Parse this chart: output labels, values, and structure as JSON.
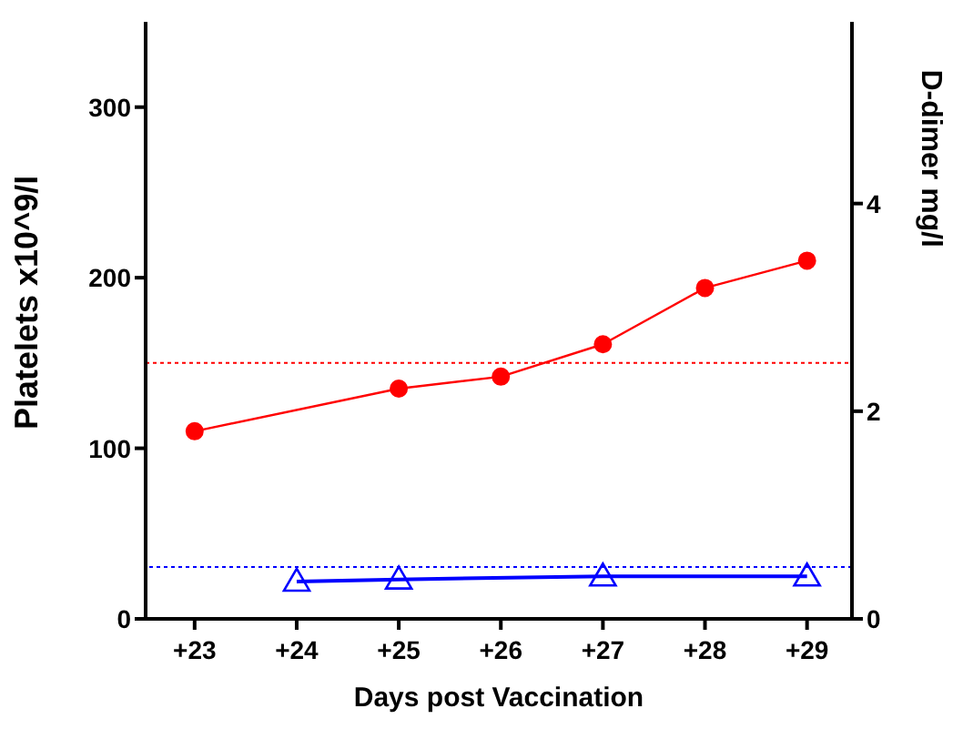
{
  "chart_data": {
    "type": "line",
    "xlabel": "Days post Vaccination",
    "ylabel": "Platelets x10^9/l",
    "y2label": "D-dimer mg/l",
    "categories": [
      "+23",
      "+24",
      "+25",
      "+26",
      "+27",
      "+28",
      "+29"
    ],
    "series": [
      {
        "color": "#ff0000",
        "values": [
          110,
          null,
          135,
          142,
          161,
          194,
          210
        ],
        "marker": "circle"
      },
      {
        "color": "#0000ff",
        "axis": "y2",
        "values": [
          null,
          0.36,
          0.38,
          null,
          0.41,
          null,
          0.41
        ],
        "marker": "triangle"
      }
    ],
    "ylim": [
      0,
      350
    ],
    "yticks": [
      0,
      100,
      200,
      300
    ],
    "y2lim": [
      0,
      5.75
    ],
    "y2ticks": [
      0,
      2,
      4
    ],
    "ref_lines": [
      {
        "axis": "y",
        "value": 150,
        "color": "#ff0000",
        "line_style": "dotted"
      },
      {
        "axis": "y2",
        "value": 0.5,
        "color": "#0000ff",
        "line_style": "dotted"
      }
    ],
    "grid": false,
    "legend": false
  }
}
